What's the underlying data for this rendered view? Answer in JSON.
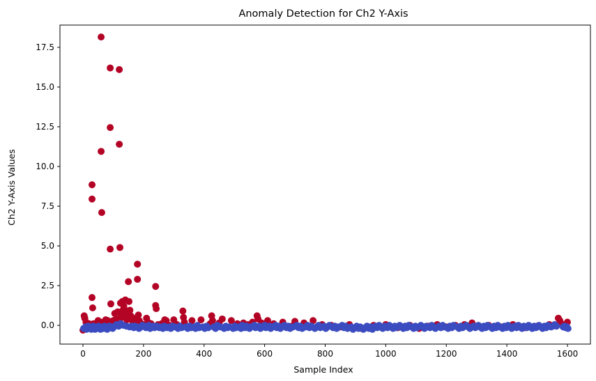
{
  "chart_data": {
    "type": "scatter",
    "title": "Anomaly Detection for Ch2 Y-Axis",
    "xlabel": "Sample Index",
    "ylabel": "Ch2 Y-Axis Values",
    "xlim": [
      -76,
      1676
    ],
    "ylim": [
      -1.18,
      18.9
    ],
    "x_ticks": [
      0,
      200,
      400,
      600,
      800,
      1000,
      1200,
      1400,
      1600
    ],
    "y_ticks": [
      0.0,
      2.5,
      5.0,
      7.5,
      10.0,
      12.5,
      15.0,
      17.5
    ],
    "grid": false,
    "legend": "none",
    "colors": {
      "anomaly": "#b40426",
      "normal": "#3b4cc0"
    },
    "anomaly_points": [
      [
        0,
        -0.3
      ],
      [
        4,
        0.6
      ],
      [
        6,
        0.45
      ],
      [
        10,
        0.2
      ],
      [
        14,
        0.05
      ],
      [
        20,
        0.1
      ],
      [
        30,
        8.85
      ],
      [
        30,
        7.95
      ],
      [
        30,
        1.75
      ],
      [
        32,
        1.1
      ],
      [
        35,
        0.1
      ],
      [
        42,
        -0.2
      ],
      [
        50,
        0.3
      ],
      [
        60,
        18.15
      ],
      [
        60,
        10.95
      ],
      [
        62,
        7.1
      ],
      [
        65,
        0.2
      ],
      [
        70,
        0.15
      ],
      [
        75,
        0.35
      ],
      [
        82,
        0.3
      ],
      [
        90,
        16.2
      ],
      [
        90,
        12.45
      ],
      [
        90,
        4.8
      ],
      [
        92,
        1.35
      ],
      [
        95,
        0.05
      ],
      [
        100,
        0.3
      ],
      [
        105,
        0.75
      ],
      [
        110,
        0.4
      ],
      [
        115,
        0.85
      ],
      [
        120,
        16.1
      ],
      [
        120,
        11.4
      ],
      [
        122,
        4.9
      ],
      [
        124,
        1.4
      ],
      [
        126,
        0.65
      ],
      [
        128,
        0.5
      ],
      [
        130,
        1.5
      ],
      [
        132,
        0.95
      ],
      [
        135,
        1.2
      ],
      [
        138,
        0.55
      ],
      [
        140,
        1.6
      ],
      [
        142,
        0.75
      ],
      [
        145,
        0.35
      ],
      [
        148,
        0.9
      ],
      [
        150,
        2.75
      ],
      [
        152,
        1.5
      ],
      [
        155,
        0.95
      ],
      [
        158,
        0.6
      ],
      [
        160,
        0.4
      ],
      [
        165,
        0.2
      ],
      [
        170,
        0.05
      ],
      [
        175,
        0.45
      ],
      [
        180,
        3.85
      ],
      [
        180,
        2.9
      ],
      [
        183,
        0.65
      ],
      [
        186,
        0.3
      ],
      [
        190,
        0.15
      ],
      [
        200,
        0.05
      ],
      [
        210,
        0.45
      ],
      [
        215,
        0.2
      ],
      [
        225,
        0.1
      ],
      [
        240,
        2.45
      ],
      [
        240,
        1.25
      ],
      [
        242,
        1.05
      ],
      [
        248,
        0.05
      ],
      [
        260,
        0.1
      ],
      [
        270,
        0.35
      ],
      [
        275,
        0.3
      ],
      [
        285,
        0.0
      ],
      [
        300,
        0.35
      ],
      [
        310,
        0.05
      ],
      [
        330,
        0.9
      ],
      [
        332,
        0.5
      ],
      [
        335,
        0.2
      ],
      [
        360,
        0.3
      ],
      [
        390,
        0.35
      ],
      [
        420,
        0.1
      ],
      [
        425,
        0.6
      ],
      [
        428,
        0.3
      ],
      [
        450,
        0.15
      ],
      [
        460,
        0.4
      ],
      [
        490,
        0.3
      ],
      [
        510,
        0.1
      ],
      [
        530,
        0.15
      ],
      [
        545,
        0.05
      ],
      [
        560,
        0.2
      ],
      [
        575,
        0.6
      ],
      [
        578,
        0.4
      ],
      [
        590,
        0.15
      ],
      [
        610,
        0.3
      ],
      [
        630,
        0.1
      ],
      [
        660,
        0.2
      ],
      [
        690,
        -0.05
      ],
      [
        700,
        0.25
      ],
      [
        730,
        0.15
      ],
      [
        760,
        0.3
      ],
      [
        790,
        0.05
      ],
      [
        820,
        0.0
      ],
      [
        850,
        -0.1
      ],
      [
        880,
        0.05
      ],
      [
        920,
        -0.2
      ],
      [
        960,
        0.0
      ],
      [
        1000,
        0.05
      ],
      [
        1040,
        -0.15
      ],
      [
        1080,
        0.0
      ],
      [
        1110,
        -0.2
      ],
      [
        1140,
        -0.05
      ],
      [
        1170,
        0.05
      ],
      [
        1200,
        -0.1
      ],
      [
        1230,
        0.0
      ],
      [
        1260,
        0.05
      ],
      [
        1285,
        0.15
      ],
      [
        1300,
        -0.05
      ],
      [
        1340,
        0.0
      ],
      [
        1380,
        -0.1
      ],
      [
        1420,
        0.05
      ],
      [
        1460,
        -0.15
      ],
      [
        1500,
        -0.05
      ],
      [
        1540,
        0.05
      ],
      [
        1570,
        0.45
      ],
      [
        1575,
        0.3
      ],
      [
        1580,
        0.1
      ],
      [
        1600,
        0.2
      ]
    ],
    "normal_points": [
      [
        2,
        -0.2
      ],
      [
        8,
        -0.1
      ],
      [
        12,
        -0.25
      ],
      [
        16,
        -0.15
      ],
      [
        18,
        -0.05
      ],
      [
        22,
        -0.2
      ],
      [
        25,
        -0.1
      ],
      [
        28,
        -0.25
      ],
      [
        34,
        -0.05
      ],
      [
        38,
        -0.15
      ],
      [
        40,
        -0.25
      ],
      [
        45,
        -0.1
      ],
      [
        48,
        -0.2
      ],
      [
        52,
        -0.05
      ],
      [
        55,
        -0.15
      ],
      [
        58,
        -0.25
      ],
      [
        64,
        -0.1
      ],
      [
        68,
        -0.2
      ],
      [
        72,
        -0.05
      ],
      [
        78,
        -0.15
      ],
      [
        80,
        -0.25
      ],
      [
        85,
        -0.1
      ],
      [
        88,
        -0.05
      ],
      [
        94,
        -0.15
      ],
      [
        98,
        -0.2
      ],
      [
        102,
        -0.1
      ],
      [
        108,
        0.0
      ],
      [
        112,
        0.05
      ],
      [
        118,
        -0.05
      ],
      [
        125,
        0.1
      ],
      [
        134,
        0.0
      ],
      [
        144,
        -0.05
      ],
      [
        154,
        -0.1
      ],
      [
        162,
        -0.05
      ],
      [
        168,
        -0.15
      ],
      [
        172,
        -0.05
      ],
      [
        178,
        -0.1
      ],
      [
        185,
        -0.2
      ],
      [
        192,
        -0.1
      ],
      [
        196,
        0.0
      ],
      [
        204,
        -0.05
      ],
      [
        208,
        -0.15
      ],
      [
        212,
        -0.1
      ],
      [
        218,
        0.0
      ],
      [
        222,
        -0.2
      ],
      [
        228,
        -0.1
      ],
      [
        232,
        -0.05
      ],
      [
        236,
        -0.15
      ],
      [
        244,
        -0.05
      ],
      [
        252,
        -0.15
      ],
      [
        256,
        -0.1
      ],
      [
        264,
        -0.2
      ],
      [
        268,
        -0.05
      ],
      [
        278,
        -0.15
      ],
      [
        282,
        -0.1
      ],
      [
        290,
        -0.2
      ],
      [
        296,
        -0.05
      ],
      [
        304,
        -0.1
      ],
      [
        314,
        -0.2
      ],
      [
        320,
        -0.05
      ],
      [
        326,
        -0.15
      ],
      [
        340,
        -0.1
      ],
      [
        346,
        -0.2
      ],
      [
        352,
        -0.05
      ],
      [
        358,
        -0.15
      ],
      [
        366,
        -0.1
      ],
      [
        372,
        -0.2
      ],
      [
        378,
        0.0
      ],
      [
        384,
        -0.15
      ],
      [
        396,
        -0.1
      ],
      [
        402,
        -0.2
      ],
      [
        408,
        -0.05
      ],
      [
        414,
        -0.15
      ],
      [
        432,
        -0.1
      ],
      [
        438,
        -0.2
      ],
      [
        444,
        0.0
      ],
      [
        454,
        -0.1
      ],
      [
        466,
        -0.2
      ],
      [
        472,
        -0.05
      ],
      [
        478,
        -0.15
      ],
      [
        484,
        -0.1
      ],
      [
        496,
        -0.2
      ],
      [
        502,
        -0.05
      ],
      [
        506,
        -0.15
      ],
      [
        516,
        -0.1
      ],
      [
        522,
        -0.2
      ],
      [
        526,
        0.0
      ],
      [
        536,
        -0.15
      ],
      [
        540,
        -0.05
      ],
      [
        550,
        -0.2
      ],
      [
        555,
        -0.1
      ],
      [
        566,
        0.0
      ],
      [
        570,
        -0.15
      ],
      [
        582,
        -0.05
      ],
      [
        586,
        -0.2
      ],
      [
        596,
        -0.1
      ],
      [
        600,
        0.0
      ],
      [
        604,
        -0.15
      ],
      [
        616,
        -0.05
      ],
      [
        620,
        -0.2
      ],
      [
        626,
        -0.1
      ],
      [
        636,
        0.0
      ],
      [
        640,
        -0.15
      ],
      [
        646,
        -0.05
      ],
      [
        652,
        -0.2
      ],
      [
        656,
        -0.1
      ],
      [
        666,
        0.0
      ],
      [
        672,
        -0.15
      ],
      [
        678,
        -0.05
      ],
      [
        684,
        -0.2
      ],
      [
        694,
        -0.1
      ],
      [
        706,
        0.0
      ],
      [
        712,
        -0.15
      ],
      [
        718,
        -0.05
      ],
      [
        724,
        -0.2
      ],
      [
        736,
        -0.1
      ],
      [
        742,
        0.0
      ],
      [
        748,
        -0.15
      ],
      [
        754,
        -0.05
      ],
      [
        766,
        -0.2
      ],
      [
        772,
        -0.1
      ],
      [
        778,
        0.0
      ],
      [
        784,
        -0.15
      ],
      [
        796,
        -0.05
      ],
      [
        802,
        -0.2
      ],
      [
        808,
        -0.1
      ],
      [
        814,
        0.0
      ],
      [
        826,
        -0.15
      ],
      [
        832,
        -0.05
      ],
      [
        838,
        -0.2
      ],
      [
        844,
        -0.1
      ],
      [
        856,
        0.0
      ],
      [
        862,
        -0.15
      ],
      [
        868,
        -0.05
      ],
      [
        874,
        -0.2
      ],
      [
        886,
        -0.1
      ],
      [
        892,
        -0.25
      ],
      [
        898,
        -0.15
      ],
      [
        904,
        -0.05
      ],
      [
        910,
        -0.2
      ],
      [
        916,
        -0.1
      ],
      [
        926,
        -0.25
      ],
      [
        932,
        -0.15
      ],
      [
        938,
        -0.05
      ],
      [
        944,
        -0.2
      ],
      [
        950,
        -0.1
      ],
      [
        956,
        -0.25
      ],
      [
        966,
        -0.05
      ],
      [
        972,
        -0.15
      ],
      [
        978,
        0.0
      ],
      [
        984,
        -0.1
      ],
      [
        990,
        -0.2
      ],
      [
        996,
        -0.05
      ],
      [
        1006,
        -0.15
      ],
      [
        1012,
        0.0
      ],
      [
        1018,
        -0.1
      ],
      [
        1024,
        -0.2
      ],
      [
        1030,
        -0.05
      ],
      [
        1036,
        -0.15
      ],
      [
        1046,
        0.0
      ],
      [
        1052,
        -0.1
      ],
      [
        1058,
        -0.2
      ],
      [
        1064,
        -0.05
      ],
      [
        1070,
        -0.15
      ],
      [
        1076,
        0.0
      ],
      [
        1086,
        -0.1
      ],
      [
        1092,
        -0.2
      ],
      [
        1098,
        -0.05
      ],
      [
        1104,
        -0.15
      ],
      [
        1116,
        0.0
      ],
      [
        1122,
        -0.1
      ],
      [
        1128,
        -0.2
      ],
      [
        1134,
        -0.05
      ],
      [
        1146,
        -0.15
      ],
      [
        1152,
        0.0
      ],
      [
        1158,
        -0.1
      ],
      [
        1164,
        -0.2
      ],
      [
        1176,
        -0.05
      ],
      [
        1182,
        -0.15
      ],
      [
        1188,
        0.0
      ],
      [
        1194,
        -0.1
      ],
      [
        1206,
        -0.2
      ],
      [
        1212,
        -0.05
      ],
      [
        1218,
        -0.15
      ],
      [
        1224,
        0.0
      ],
      [
        1236,
        -0.1
      ],
      [
        1242,
        -0.2
      ],
      [
        1248,
        -0.05
      ],
      [
        1254,
        -0.15
      ],
      [
        1266,
        0.0
      ],
      [
        1272,
        -0.1
      ],
      [
        1278,
        -0.2
      ],
      [
        1290,
        -0.05
      ],
      [
        1296,
        -0.15
      ],
      [
        1306,
        0.0
      ],
      [
        1312,
        -0.1
      ],
      [
        1318,
        -0.2
      ],
      [
        1324,
        -0.05
      ],
      [
        1330,
        -0.15
      ],
      [
        1336,
        0.0
      ],
      [
        1346,
        -0.1
      ],
      [
        1352,
        -0.2
      ],
      [
        1358,
        -0.05
      ],
      [
        1364,
        -0.15
      ],
      [
        1370,
        0.0
      ],
      [
        1376,
        -0.1
      ],
      [
        1386,
        -0.2
      ],
      [
        1392,
        -0.05
      ],
      [
        1398,
        -0.15
      ],
      [
        1404,
        0.0
      ],
      [
        1410,
        -0.1
      ],
      [
        1416,
        -0.2
      ],
      [
        1426,
        -0.05
      ],
      [
        1432,
        -0.15
      ],
      [
        1438,
        0.0
      ],
      [
        1444,
        -0.1
      ],
      [
        1450,
        -0.2
      ],
      [
        1456,
        -0.05
      ],
      [
        1466,
        -0.15
      ],
      [
        1472,
        0.0
      ],
      [
        1478,
        -0.1
      ],
      [
        1484,
        -0.2
      ],
      [
        1490,
        -0.05
      ],
      [
        1496,
        -0.15
      ],
      [
        1506,
        0.0
      ],
      [
        1512,
        -0.1
      ],
      [
        1518,
        -0.2
      ],
      [
        1524,
        -0.05
      ],
      [
        1530,
        -0.15
      ],
      [
        1536,
        0.0
      ],
      [
        1546,
        -0.1
      ],
      [
        1552,
        -0.05
      ],
      [
        1558,
        0.05
      ],
      [
        1564,
        -0.05
      ],
      [
        1586,
        -0.1
      ],
      [
        1590,
        -0.05
      ],
      [
        1594,
        -0.15
      ],
      [
        1598,
        -0.1
      ],
      [
        1602,
        -0.2
      ]
    ]
  }
}
